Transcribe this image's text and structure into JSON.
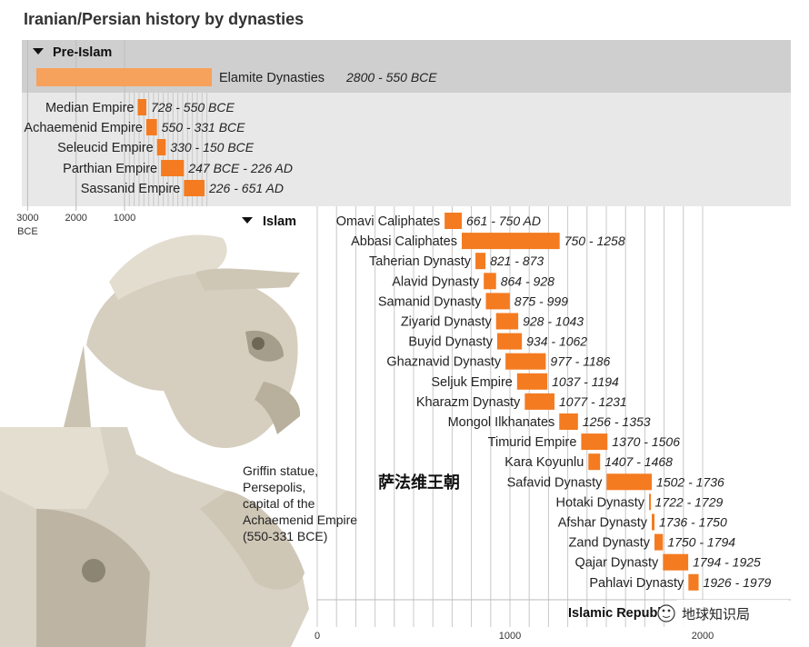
{
  "title": "Iranian/Persian history by dynasties",
  "sections": {
    "pre_islam": "Pre-Islam",
    "islam": "Islam",
    "republic": "Islamic Republic"
  },
  "caption": [
    "Griffin statue,",
    "Persepolis,",
    "capital of the",
    "Achaemenid Empire",
    "(550-331 BCE)"
  ],
  "chinese_label": "萨法维王朝",
  "watermark": "地球知识局",
  "colors": {
    "bar": "#f47b20",
    "bar_faded": "#f6a15c",
    "panel": "#e8e8e8",
    "panel_dark": "#cfcfcf",
    "grid": "#c8c8c8"
  },
  "chart_data": [
    {
      "type": "bar",
      "orientation": "horizontal-timeline",
      "title": "Pre-Islam",
      "x_axis": {
        "ticks": [
          -3000,
          -2000,
          -1000
        ],
        "tick_labels": [
          "3000",
          "2000",
          "1000"
        ],
        "unit_label": "BCE"
      },
      "items": [
        {
          "name": "Elamite Dynasties",
          "range": "2800 - 550 BCE",
          "start": -2800,
          "end": -550
        },
        {
          "name": "Median Empire",
          "range": "728 - 550 BCE",
          "start": -728,
          "end": -550
        },
        {
          "name": "Achaemenid Empire",
          "range": "550 - 331 BCE",
          "start": -550,
          "end": -331
        },
        {
          "name": "Seleucid Empire",
          "range": "330 - 150 BCE",
          "start": -330,
          "end": -150
        },
        {
          "name": "Parthian Empire",
          "range": "247 BCE - 226 AD",
          "start": -247,
          "end": 226
        },
        {
          "name": "Sassanid Empire",
          "range": "226 - 651 AD",
          "start": 226,
          "end": 651
        }
      ]
    },
    {
      "type": "bar",
      "orientation": "horizontal-timeline",
      "title": "Islam",
      "x_axis": {
        "ticks": [
          0,
          1000,
          2000
        ],
        "tick_labels": [
          "0",
          "1000",
          "2000"
        ]
      },
      "items": [
        {
          "name": "Omavi Caliphates",
          "range": "661 - 750 AD",
          "start": 661,
          "end": 750
        },
        {
          "name": "Abbasi Caliphates",
          "range": "750 - 1258",
          "start": 750,
          "end": 1258
        },
        {
          "name": "Taherian Dynasty",
          "range": "821 - 873",
          "start": 821,
          "end": 873
        },
        {
          "name": "Alavid Dynasty",
          "range": "864 - 928",
          "start": 864,
          "end": 928
        },
        {
          "name": "Samanid Dynasty",
          "range": "875 - 999",
          "start": 875,
          "end": 999
        },
        {
          "name": "Ziyarid Dynasty",
          "range": "928 - 1043",
          "start": 928,
          "end": 1043
        },
        {
          "name": "Buyid Dynasty",
          "range": "934 - 1062",
          "start": 934,
          "end": 1062
        },
        {
          "name": "Ghaznavid Dynasty",
          "range": "977 - 1186",
          "start": 977,
          "end": 1186
        },
        {
          "name": "Seljuk Empire",
          "range": "1037 - 1194",
          "start": 1037,
          "end": 1194
        },
        {
          "name": "Kharazm Dynasty",
          "range": "1077 - 1231",
          "start": 1077,
          "end": 1231
        },
        {
          "name": "Mongol Ilkhanates",
          "range": "1256 - 1353",
          "start": 1256,
          "end": 1353
        },
        {
          "name": "Timurid Empire",
          "range": "1370 - 1506",
          "start": 1370,
          "end": 1506
        },
        {
          "name": "Kara Koyunlu",
          "range": "1407 - 1468",
          "start": 1407,
          "end": 1468
        },
        {
          "name": "Safavid Dynasty",
          "range": "1502 - 1736",
          "start": 1502,
          "end": 1736
        },
        {
          "name": "Hotaki Dynasty",
          "range": "1722 - 1729",
          "start": 1722,
          "end": 1729
        },
        {
          "name": "Afshar Dynasty",
          "range": "1736 - 1750",
          "start": 1736,
          "end": 1750
        },
        {
          "name": "Zand Dynasty",
          "range": "1750 - 1794",
          "start": 1750,
          "end": 1794
        },
        {
          "name": "Qajar Dynasty",
          "range": "1794 - 1925",
          "start": 1794,
          "end": 1925
        },
        {
          "name": "Pahlavi Dynasty",
          "range": "1926 - 1979",
          "start": 1926,
          "end": 1979
        }
      ]
    }
  ]
}
